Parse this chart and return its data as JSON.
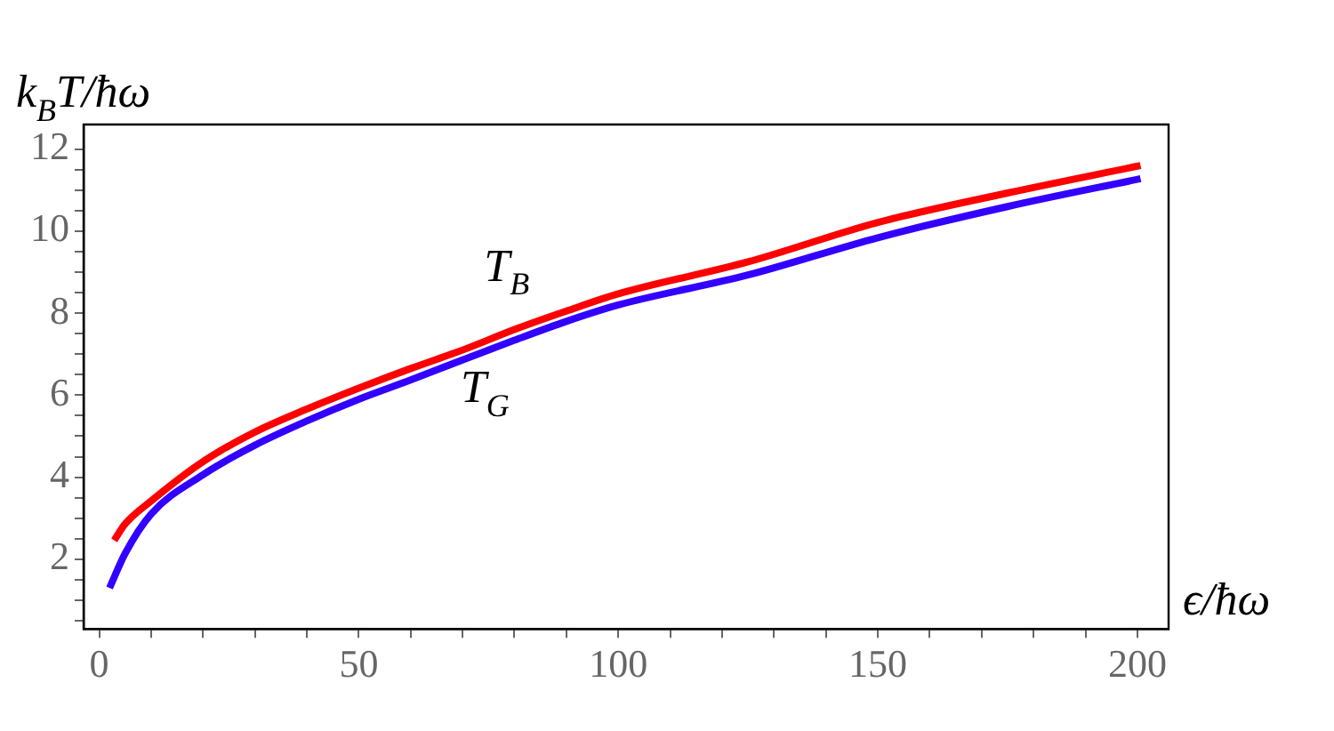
{
  "chart_data": {
    "type": "line",
    "xlabel": "ϵ/ħω",
    "ylabel": "k$_{B}$T/ħω",
    "series": [
      {
        "color": "#ff0000",
        "x": [
          2.9,
          5,
          10,
          20,
          30,
          40,
          50,
          60,
          70,
          80,
          90,
          100,
          125,
          150,
          175,
          200.6
        ],
        "values": [
          2.46,
          2.86,
          3.42,
          4.38,
          5.1,
          5.66,
          6.17,
          6.65,
          7.1,
          7.6,
          8.05,
          8.47,
          9.25,
          10.21,
          10.93,
          11.6
        ]
      },
      {
        "color": "#3300ff",
        "x": [
          2,
          5,
          10,
          20,
          30,
          40,
          50,
          60,
          70,
          80,
          90,
          100,
          125,
          150,
          175,
          200.6
        ],
        "values": [
          1.3,
          2.14,
          3.1,
          4.06,
          4.78,
          5.37,
          5.9,
          6.37,
          6.86,
          7.34,
          7.8,
          8.2,
          8.93,
          9.84,
          10.6,
          11.28
        ]
      }
    ],
    "xlim": [
      -3,
      206
    ],
    "xticks": [
      0,
      {
        "value": 10,
        "label": null
      },
      {
        "value": 20,
        "label": null
      },
      {
        "value": 30,
        "label": null
      },
      {
        "value": 40,
        "label": null
      },
      50,
      {
        "value": 60,
        "label": null
      },
      {
        "value": 70,
        "label": null
      },
      {
        "value": 80,
        "label": null
      },
      {
        "value": 90,
        "label": null
      },
      100,
      {
        "value": 110,
        "label": null
      },
      {
        "value": 120,
        "label": null
      },
      {
        "value": 130,
        "label": null
      },
      {
        "value": 140,
        "label": null
      },
      150,
      {
        "value": 160,
        "label": null
      },
      {
        "value": 170,
        "label": null
      },
      {
        "value": 180,
        "label": null
      },
      {
        "value": 190,
        "label": null
      },
      200
    ],
    "ylim": [
      0.3,
      12.6
    ],
    "yticks": [
      {
        "value": 0.5,
        "label": null
      },
      {
        "value": 1,
        "label": null
      },
      {
        "value": 1.5,
        "label": null
      },
      2,
      {
        "value": 2.5,
        "label": null
      },
      {
        "value": 3,
        "label": null
      },
      {
        "value": 3.5,
        "label": null
      },
      4,
      {
        "value": 4.5,
        "label": null
      },
      {
        "value": 5,
        "label": null
      },
      {
        "value": 5.5,
        "label": null
      },
      6,
      {
        "value": 6.5,
        "label": null
      },
      {
        "value": 7,
        "label": null
      },
      {
        "value": 7.5,
        "label": null
      },
      8,
      {
        "value": 8.5,
        "label": null
      },
      {
        "value": 9,
        "label": null
      },
      {
        "value": 9.5,
        "label": null
      },
      10,
      {
        "value": 10.5,
        "label": null
      },
      {
        "value": 11,
        "label": null
      },
      {
        "value": 11.5,
        "label": null
      },
      12
    ],
    "annotations": [
      "T$_{B}$",
      "T$_{G}$"
    ],
    "grid": false,
    "legend": false,
    "marker": "none",
    "line_style": "solid"
  }
}
